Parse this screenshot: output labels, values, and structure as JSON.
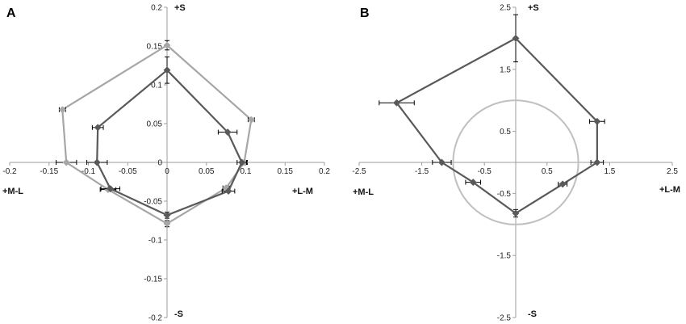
{
  "chart_data": [
    {
      "panel_label": "A",
      "type": "line",
      "axes_style": "cross-at-origin",
      "xlim": [
        -0.2,
        0.2
      ],
      "ylim": [
        -0.2,
        0.2
      ],
      "x_ticks": [
        -0.2,
        -0.15,
        -0.1,
        -0.05,
        0,
        0.05,
        0.1,
        0.15,
        0.2
      ],
      "y_ticks": [
        0.2,
        0.15,
        0.1,
        0.05,
        0,
        -0.05,
        -0.1,
        -0.15,
        -0.2
      ],
      "x_tick_labels": [
        "-0.2",
        "-0.15",
        "-0.1",
        "-0.05",
        "0",
        "0.05",
        "0.1",
        "0.15",
        "0.2"
      ],
      "y_tick_labels": [
        "0.2",
        "0.15",
        "0.1",
        "0.05",
        "0",
        "-0.05",
        "-0.1",
        "-0.15",
        "-0.2"
      ],
      "direction_labels": {
        "top": "+S",
        "bottom": "-S",
        "left": "+M-L",
        "right": "+L-M"
      },
      "series": [
        {
          "color": "#a6a6a6",
          "marker": "diamond",
          "closed": true,
          "points": [
            {
              "x": 0.0,
              "y": 0.151,
              "xerr": 0.0,
              "yerr": 0.006
            },
            {
              "x": 0.107,
              "y": 0.055,
              "xerr": 0.004,
              "yerr": 0.0
            },
            {
              "x": 0.098,
              "y": 0.0,
              "xerr": 0.004,
              "yerr": 0.0
            },
            {
              "x": 0.075,
              "y": -0.033,
              "xerr": 0.004,
              "yerr": 0.0
            },
            {
              "x": 0.0,
              "y": -0.079,
              "xerr": 0.0,
              "yerr": 0.004
            },
            {
              "x": -0.075,
              "y": -0.035,
              "xerr": 0.01,
              "yerr": 0.0
            },
            {
              "x": -0.128,
              "y": 0.0,
              "xerr": 0.013,
              "yerr": 0.0
            },
            {
              "x": -0.133,
              "y": 0.068,
              "xerr": 0.004,
              "yerr": 0.0
            }
          ]
        },
        {
          "color": "#595959",
          "marker": "diamond",
          "closed": true,
          "points": [
            {
              "x": 0.0,
              "y": 0.119,
              "xerr": 0.0,
              "yerr": 0.017
            },
            {
              "x": 0.077,
              "y": 0.039,
              "xerr": 0.012,
              "yerr": 0.0
            },
            {
              "x": 0.095,
              "y": 0.0,
              "xerr": 0.006,
              "yerr": 0.0
            },
            {
              "x": 0.078,
              "y": -0.037,
              "xerr": 0.008,
              "yerr": 0.0
            },
            {
              "x": 0.0,
              "y": -0.068,
              "xerr": 0.0,
              "yerr": 0.004
            },
            {
              "x": -0.072,
              "y": -0.034,
              "xerr": 0.012,
              "yerr": 0.0
            },
            {
              "x": -0.089,
              "y": 0.0,
              "xerr": 0.013,
              "yerr": 0.0
            },
            {
              "x": -0.088,
              "y": 0.045,
              "xerr": 0.007,
              "yerr": 0.0
            }
          ]
        }
      ]
    },
    {
      "panel_label": "B",
      "type": "line",
      "axes_style": "cross-at-origin",
      "xlim": [
        -2.5,
        2.5
      ],
      "ylim": [
        -2.5,
        2.5
      ],
      "x_ticks": [
        -2.5,
        -1.5,
        -0.5,
        0.5,
        1.5,
        2.5
      ],
      "y_ticks": [
        2.5,
        1.5,
        0.5,
        -0.5,
        -1.5,
        -2.5
      ],
      "x_tick_labels": [
        "-2.5",
        "-1.5",
        "-0.5",
        "0.5",
        "1.5",
        "2.5"
      ],
      "y_tick_labels": [
        "2.5",
        "1.5",
        "0.5",
        "-0.5",
        "-1.5",
        "-2.5"
      ],
      "direction_labels": {
        "top": "+S",
        "bottom": "-S",
        "left": "+M-L",
        "right": "+L-M"
      },
      "reference_circle": {
        "center": [
          0,
          0
        ],
        "radius": 1.0,
        "color": "#bfbfbf"
      },
      "series": [
        {
          "color": "#595959",
          "marker": "diamond",
          "closed": true,
          "points": [
            {
              "x": 0.0,
              "y": 2.0,
              "xerr": 0.0,
              "yerr": 0.38
            },
            {
              "x": 1.3,
              "y": 0.66,
              "xerr": 0.12,
              "yerr": 0.0
            },
            {
              "x": 1.3,
              "y": 0.0,
              "xerr": 0.1,
              "yerr": 0.0
            },
            {
              "x": 0.75,
              "y": -0.35,
              "xerr": 0.07,
              "yerr": 0.0
            },
            {
              "x": 0.0,
              "y": -0.82,
              "xerr": 0.0,
              "yerr": 0.06
            },
            {
              "x": -0.68,
              "y": -0.32,
              "xerr": 0.12,
              "yerr": 0.0
            },
            {
              "x": -1.18,
              "y": 0.0,
              "xerr": 0.15,
              "yerr": 0.0
            },
            {
              "x": -1.9,
              "y": 0.96,
              "xerr": 0.28,
              "yerr": 0.0
            }
          ]
        }
      ]
    }
  ]
}
